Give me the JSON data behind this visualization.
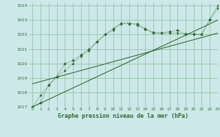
{
  "title": "Graphe pression niveau de la mer (hPa)",
  "bg_color": "#cce8e8",
  "grid_color": "#88bb99",
  "line_color": "#2d6a2d",
  "xlim": [
    -0.5,
    23
  ],
  "ylim": [
    1017,
    1024.2
  ],
  "yticks": [
    1017,
    1018,
    1019,
    1020,
    1021,
    1022,
    1023,
    1024
  ],
  "xticks": [
    0,
    1,
    2,
    3,
    4,
    5,
    6,
    7,
    8,
    9,
    10,
    11,
    12,
    13,
    14,
    15,
    16,
    17,
    18,
    19,
    20,
    21,
    22,
    23
  ],
  "line1_x": [
    0,
    1,
    2,
    3,
    4,
    5,
    6,
    7,
    8,
    9,
    10,
    11,
    12,
    13,
    14,
    15,
    16,
    17,
    18,
    19,
    20,
    21,
    22,
    23
  ],
  "line1_y": [
    1017.0,
    1017.8,
    1018.5,
    1019.1,
    1019.5,
    1020.0,
    1020.5,
    1020.9,
    1021.5,
    1022.0,
    1022.3,
    1022.8,
    1022.8,
    1022.65,
    1022.35,
    1022.15,
    1022.1,
    1022.1,
    1022.1,
    1022.05,
    1022.05,
    1022.0,
    1023.05,
    1024.0
  ],
  "line2_x": [
    0,
    1,
    2,
    3,
    4,
    5,
    6,
    7,
    8,
    9,
    10,
    11,
    12,
    13,
    14,
    15,
    16,
    17,
    18,
    19,
    20,
    21,
    22,
    23
  ],
  "line2_y": [
    1017.0,
    1017.3,
    1018.5,
    1019.1,
    1020.0,
    1020.2,
    1020.6,
    1021.0,
    1021.5,
    1022.0,
    1022.4,
    1022.75,
    1022.75,
    1022.75,
    1022.4,
    1022.1,
    1022.1,
    1022.2,
    1022.3,
    1022.0,
    1022.0,
    1022.0,
    1023.0,
    1023.8
  ],
  "line3_x": [
    0,
    23
  ],
  "line3_y": [
    1017.0,
    1023.0
  ],
  "line4_x": [
    0,
    23
  ],
  "line4_y": [
    1018.6,
    1022.1
  ]
}
